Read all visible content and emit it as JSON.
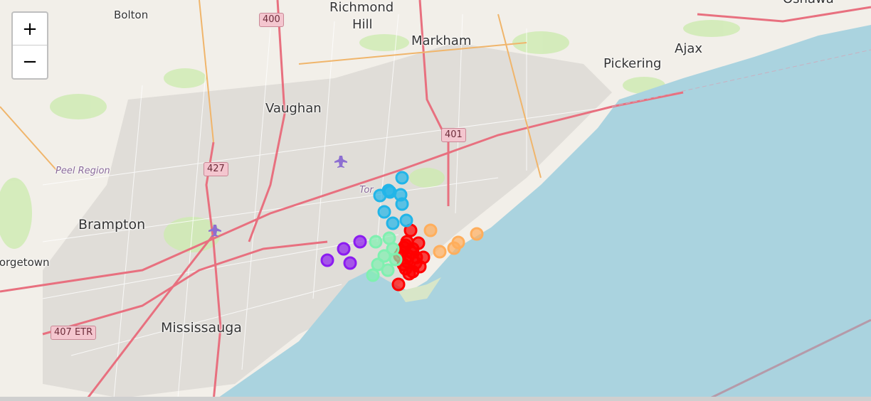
{
  "map": {
    "cities": {
      "richmond": "Richmond",
      "hill": "Hill",
      "markham": "Markham",
      "vaughan": "Vaughan",
      "pickering": "Pickering",
      "ajax": "Ajax",
      "oshawa": "Oshawa",
      "brampton": "Brampton",
      "mississauga": "Mississauga",
      "bolton": "Bolton",
      "georgetown": "Georgetown",
      "toronto_partial": "Tor",
      "peel_region": "Peel Region"
    },
    "highways": {
      "h400": "400",
      "h401": "401",
      "h427": "427",
      "h407": "407 ETR"
    },
    "icons": [
      "airport-icon",
      "airport-icon"
    ]
  },
  "zoom_control": {
    "in_label": "+",
    "out_label": "−"
  },
  "markers": {
    "colors": {
      "red": "#ff0000",
      "cyan": "#22b5e8",
      "mint": "#7ff0b0",
      "orange": "#ffae5c",
      "purple": "#8b1cf0"
    },
    "clusters": [
      {
        "color": "red",
        "count": 20
      },
      {
        "color": "cyan",
        "count": 9
      },
      {
        "color": "mint",
        "count": 8
      },
      {
        "color": "orange",
        "count": 5
      },
      {
        "color": "purple",
        "count": 4
      }
    ]
  }
}
